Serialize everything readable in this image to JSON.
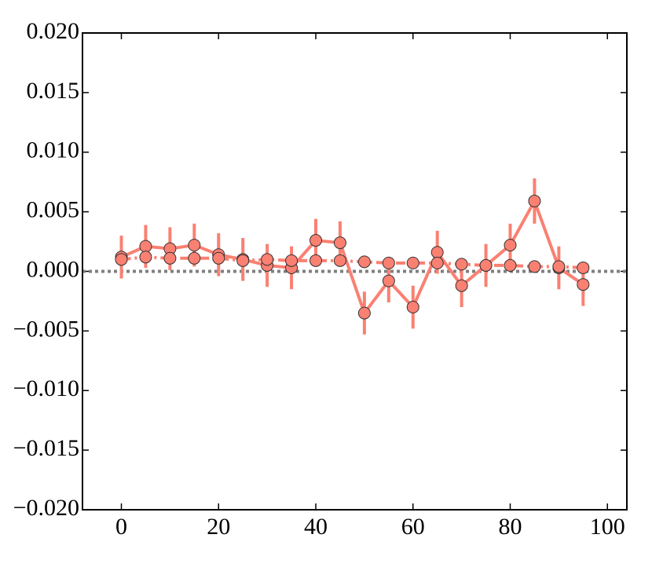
{
  "chart_data": {
    "type": "errorbar-line",
    "x": [
      0,
      5,
      10,
      15,
      20,
      25,
      30,
      35,
      40,
      45,
      50,
      55,
      60,
      65,
      70,
      75,
      80,
      85,
      90,
      95
    ],
    "series": [
      {
        "color": "#fa8072",
        "line": "solid",
        "values": [
          0.0012,
          0.0021,
          0.0019,
          0.0022,
          0.0014,
          0.001,
          0.0005,
          0.0003,
          0.0026,
          0.0024,
          -0.0035,
          -0.0008,
          -0.003,
          0.0016,
          -0.0012,
          0.0005,
          0.0022,
          0.0059,
          0.0003,
          -0.0011
        ],
        "errors": [
          0.0018,
          0.0018,
          0.0018,
          0.0018,
          0.0018,
          0.0018,
          0.0018,
          0.0018,
          0.0018,
          0.0018,
          0.0018,
          0.0018,
          0.0018,
          0.0018,
          0.0018,
          0.0018,
          0.0018,
          0.0019,
          0.0018,
          0.0018
        ]
      },
      {
        "color": "#fa8072",
        "line": "dashdot",
        "values": [
          0.001,
          0.0012,
          0.0011,
          0.0011,
          0.0011,
          0.0009,
          0.001,
          0.0009,
          0.0009,
          0.0009,
          0.0008,
          0.0007,
          0.0007,
          0.0007,
          0.0006,
          0.0005,
          0.0005,
          0.0004,
          0.0004,
          0.0003
        ]
      }
    ],
    "hline": 0,
    "hline_color": "#808080",
    "xlim": [
      -8,
      104
    ],
    "ylim": [
      -0.02,
      0.02
    ],
    "xticks": [
      0,
      20,
      40,
      60,
      80,
      100
    ],
    "yticks": [
      {
        "value": -0.02,
        "label": "−0.020"
      },
      {
        "value": -0.015,
        "label": "−0.015"
      },
      {
        "value": -0.01,
        "label": "−0.010"
      },
      {
        "value": -0.005,
        "label": "−0.005"
      },
      {
        "value": 0,
        "label": "0.000"
      },
      {
        "value": 0.005,
        "label": "0.005"
      },
      {
        "value": 0.01,
        "label": "0.010"
      },
      {
        "value": 0.015,
        "label": "0.015"
      },
      {
        "value": 0.02,
        "label": "0.020"
      }
    ]
  }
}
